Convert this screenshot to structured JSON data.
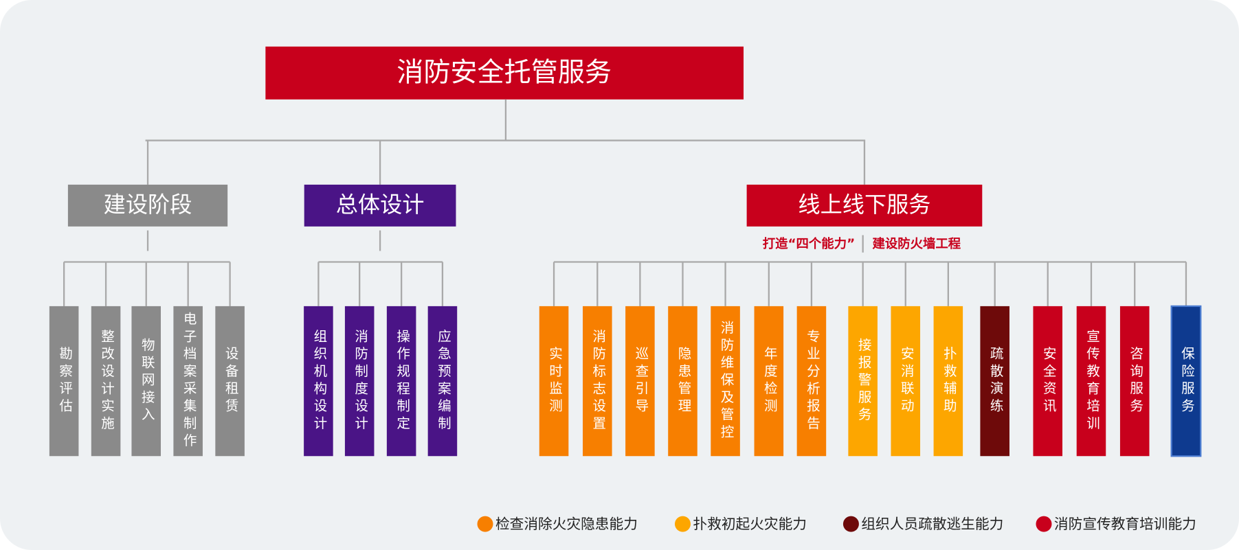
{
  "title": "消防安全托管服务",
  "branches": [
    {
      "label": "建设阶段",
      "color": "#8a8a8a",
      "children": [
        {
          "label": "勘察评估",
          "color": "#8a8a8a"
        },
        {
          "label": "整改设计实施",
          "color": "#8a8a8a"
        },
        {
          "label": "物联网接入",
          "color": "#8a8a8a"
        },
        {
          "label": "电子档案采集制作",
          "color": "#8a8a8a"
        },
        {
          "label": "设备租赁",
          "color": "#8a8a8a"
        }
      ]
    },
    {
      "label": "总体设计",
      "color": "#4a1486",
      "children": [
        {
          "label": "组织机构设计",
          "color": "#4a1486"
        },
        {
          "label": "消防制度设计",
          "color": "#4a1486"
        },
        {
          "label": "操作规程制定",
          "color": "#4a1486"
        },
        {
          "label": "应急预案编制",
          "color": "#4a1486"
        }
      ]
    },
    {
      "label": "线上线下服务",
      "color": "#c8001c",
      "children": [
        {
          "label": "实时监测",
          "color": "#f77f00"
        },
        {
          "label": "消防标志设置",
          "color": "#f77f00"
        },
        {
          "label": "巡查引导",
          "color": "#f77f00"
        },
        {
          "label": "隐患管理",
          "color": "#f77f00"
        },
        {
          "label": "消防维保及管控",
          "color": "#f77f00"
        },
        {
          "label": "年度检测",
          "color": "#f77f00"
        },
        {
          "label": "专业分析报告",
          "color": "#f77f00"
        },
        {
          "label": "接报警服务",
          "color": "#fda600"
        },
        {
          "label": "安消联动",
          "color": "#fda600"
        },
        {
          "label": "扑救辅助",
          "color": "#fda600"
        },
        {
          "label": "疏散演练",
          "color": "#6e0a0a"
        },
        {
          "label": "安全资讯",
          "color": "#c8001c"
        },
        {
          "label": "宣传教育培训",
          "color": "#c8001c"
        },
        {
          "label": "咨询服务",
          "color": "#c8001c"
        },
        {
          "label": "保险服务",
          "color": "#0e3a8f"
        }
      ]
    }
  ],
  "subtitle": [
    "打造“四个能力”",
    "建设防火墙工程"
  ],
  "legend": [
    {
      "label": "检查消除火灾隐患能力",
      "color": "#f77f00"
    },
    {
      "label": "扑救初起火灾能力",
      "color": "#fda600"
    },
    {
      "label": "组织人员疏散逃生能力",
      "color": "#6e0a0a"
    },
    {
      "label": "消防宣传教育培训能力",
      "color": "#c8001c"
    }
  ]
}
